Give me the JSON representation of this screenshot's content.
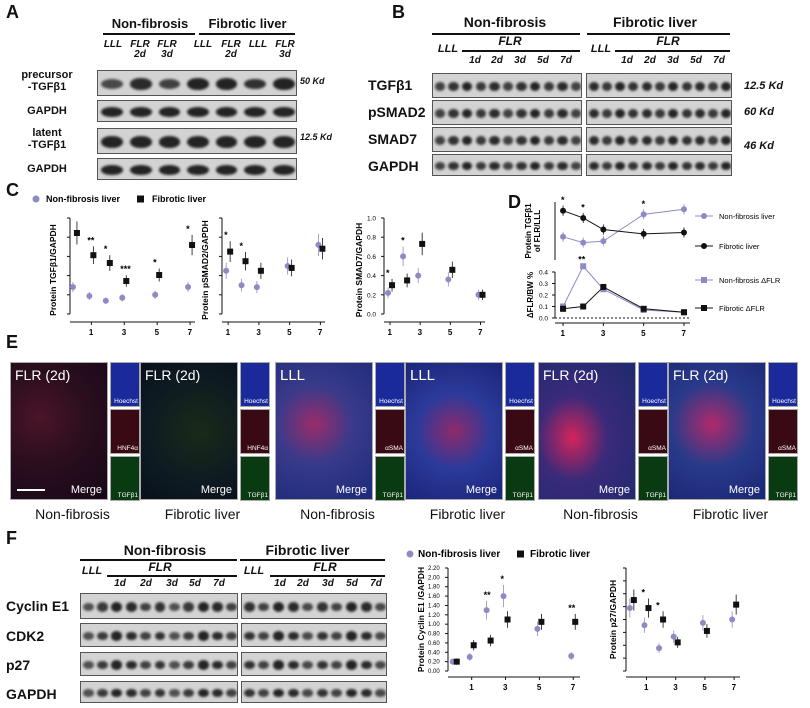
{
  "panels": {
    "A": "A",
    "B": "B",
    "C": "C",
    "D": "D",
    "E": "E",
    "F": "F"
  },
  "colors": {
    "non_fibrosis": "#8d8bc4",
    "fibrotic": "#111111"
  },
  "panelA": {
    "groups": [
      "Non-fibrosis",
      "Fibrotic liver"
    ],
    "lanes": [
      "LLL",
      "FLR\n2d",
      "FLR\n3d",
      "LLL",
      "FLR\n2d",
      "LLL",
      "FLR\n3d"
    ],
    "rows": [
      "precursor\n-TGFβ1",
      "GAPDH",
      "latent\n-TGFβ1",
      "GAPDH"
    ],
    "markers": [
      "50 Kd",
      "12.5 Kd"
    ]
  },
  "panelB": {
    "groups": [
      "Non-fibrosis",
      "Fibrotic liver"
    ],
    "flr": "FLR",
    "lll": "LLL",
    "days": [
      "1d",
      "2d",
      "3d",
      "5d",
      "7d"
    ],
    "rows": [
      "TGFβ1",
      "pSMAD2",
      "SMAD7",
      "GAPDH"
    ],
    "markers": [
      "12.5 Kd",
      "60 Kd",
      "46 Kd"
    ]
  },
  "panelC": {
    "legend": [
      "Non-fibrosis liver",
      "Fibrotic liver"
    ],
    "charts": [
      {
        "ylabel": "Protein TGFβ1/GAPDH",
        "xticks": [
          "1",
          "3",
          "5",
          "7"
        ],
        "stars": [
          "**",
          "*",
          "***",
          "*",
          "*"
        ]
      },
      {
        "ylabel": "Protein pSMAD2/GAPDH",
        "xticks": [
          "1",
          "3",
          "5",
          "7"
        ],
        "stars": [
          "*",
          "*"
        ]
      },
      {
        "ylabel": "Protein SMAD7/GAPDH",
        "xticks": [
          "1",
          "3",
          "5",
          "7"
        ],
        "yticks": [
          "0.0",
          "0.2",
          "0.4",
          "0.6",
          "0.8",
          "1.0"
        ],
        "stars": [
          "*",
          "*"
        ]
      }
    ]
  },
  "panelD": {
    "ylabel_top": "Protein TGFβ1\nof FLR/LLL",
    "ylabel_bottom": "ΔFLR/BW %",
    "yticks_bottom": [
      "0.4",
      "0.3",
      "0.2",
      "0.1",
      "0.0"
    ],
    "xticks": [
      "1",
      "3",
      "5",
      "7"
    ],
    "legend": [
      "Non-fibrosis liver",
      "Fibrotic liver",
      "Non-fibrosis ΔFLR",
      "Fibrotic ΔFLR"
    ],
    "stars_top": [
      "*",
      "*",
      "*"
    ],
    "stars_bottom": [
      "**"
    ]
  },
  "panelE": {
    "groups": [
      {
        "tiles": [
          "FLR (2d)",
          "FLR (2d)"
        ],
        "captions": [
          "Non-fibrosis",
          "Fibrotic liver"
        ],
        "subs": [
          "Hoechst",
          "HNF4α",
          "TGFβ1"
        ],
        "merge": "Merge"
      },
      {
        "tiles": [
          "LLL",
          "LLL"
        ],
        "captions": [
          "Non-fibrosis",
          "Fibrotic liver"
        ],
        "subs": [
          "Hoechst",
          "αSMA",
          "TGFβ1"
        ],
        "merge": "Merge"
      },
      {
        "tiles": [
          "FLR (2d)",
          "FLR (2d)"
        ],
        "captions": [
          "Non-fibrosis",
          "Fibrotic liver"
        ],
        "subs": [
          "Hoechst",
          "αSMA",
          "TGFβ1"
        ],
        "merge": "Merge"
      }
    ]
  },
  "panelF": {
    "groups": [
      "Non-fibrosis",
      "Fibrotic liver"
    ],
    "lll": "LLL",
    "flr": "FLR",
    "days": [
      "1d",
      "2d",
      "3d",
      "5d",
      "7d"
    ],
    "rows": [
      "Cyclin E1",
      "CDK2",
      "p27",
      "GAPDH"
    ],
    "legend": [
      "Non-fibrosis liver",
      "Fibrotic liver"
    ],
    "chart1": {
      "ylabel": "Protein Cyclin E1 /GAPDH",
      "yticks": [
        "0.00",
        "0.20",
        "0.40",
        "0.60",
        "0.80",
        "1.00",
        "1.20",
        "1.40",
        "1.60",
        "1.80",
        "2.00",
        "2.20"
      ],
      "xticks": [
        "1",
        "3",
        "5",
        "7"
      ],
      "stars": [
        "**",
        "*",
        "**"
      ]
    },
    "chart2": {
      "ylabel": "Protein p27/GAPDH",
      "xticks": [
        "1",
        "3",
        "5",
        "7"
      ],
      "stars": [
        "*",
        "*"
      ]
    }
  },
  "chart_data": [
    {
      "type": "scatter",
      "ylabel": "Protein TGFβ1/GAPDH",
      "x": [
        0,
        1,
        2,
        3,
        5,
        7
      ],
      "series": [
        {
          "name": "Non-fibrosis liver",
          "values": [
            0.45,
            0.3,
            0.22,
            0.27,
            0.32,
            0.45
          ]
        },
        {
          "name": "Fibrotic liver",
          "values": [
            1.35,
            0.98,
            0.85,
            0.55,
            0.65,
            1.15
          ]
        }
      ],
      "ylim": [
        0,
        1.6
      ]
    },
    {
      "type": "scatter",
      "ylabel": "Protein pSMAD2/GAPDH",
      "x": [
        1,
        2,
        3,
        5,
        7
      ],
      "series": [
        {
          "name": "Non-fibrosis liver",
          "values": [
            0.45,
            0.3,
            0.28,
            0.5,
            0.72
          ]
        },
        {
          "name": "Fibrotic liver",
          "values": [
            0.65,
            0.55,
            0.45,
            0.48,
            0.68
          ]
        }
      ],
      "ylim": [
        0,
        1.0
      ]
    },
    {
      "type": "scatter",
      "ylabel": "Protein SMAD7/GAPDH",
      "x": [
        1,
        2,
        3,
        5,
        7
      ],
      "series": [
        {
          "name": "Non-fibrosis liver",
          "values": [
            0.22,
            0.6,
            0.4,
            0.36,
            0.2
          ]
        },
        {
          "name": "Fibrotic liver",
          "values": [
            0.3,
            0.35,
            0.73,
            0.46,
            0.2
          ]
        }
      ],
      "ylim": [
        0,
        1.0
      ]
    },
    {
      "type": "line",
      "ylabel": "Protein TGFβ1 of FLR/LLL",
      "x": [
        1,
        2,
        3,
        5,
        7
      ],
      "series": [
        {
          "name": "Non-fibrosis liver",
          "values": [
            3.2,
            2.4,
            2.6,
            6.3,
            7.0
          ]
        },
        {
          "name": "Fibrotic liver",
          "values": [
            6.8,
            5.8,
            4.2,
            3.6,
            3.8
          ]
        }
      ],
      "ylim": [
        0,
        8
      ]
    },
    {
      "type": "line",
      "ylabel": "ΔFLR/BW %",
      "x": [
        1,
        2,
        3,
        5,
        7
      ],
      "series": [
        {
          "name": "Non-fibrosis ΔFLR",
          "values": [
            0.1,
            0.45,
            0.25,
            0.07,
            0.05
          ]
        },
        {
          "name": "Fibrotic ΔFLR",
          "values": [
            0.08,
            0.1,
            0.27,
            0.08,
            0.05
          ]
        }
      ],
      "ylim": [
        0,
        0.4
      ]
    },
    {
      "type": "scatter",
      "ylabel": "Protein Cyclin E1 /GAPDH",
      "x": [
        0,
        1,
        2,
        3,
        5,
        7
      ],
      "series": [
        {
          "name": "Non-fibrosis liver",
          "values": [
            0.2,
            0.3,
            1.3,
            1.6,
            0.9,
            0.32
          ]
        },
        {
          "name": "Fibrotic liver",
          "values": [
            0.2,
            0.55,
            0.65,
            1.1,
            1.05,
            1.05
          ]
        }
      ],
      "ylim": [
        0,
        2.2
      ]
    },
    {
      "type": "scatter",
      "ylabel": "Protein p27/GAPDH",
      "x": [
        0,
        1,
        2,
        3,
        5,
        7
      ],
      "series": [
        {
          "name": "Non-fibrosis liver",
          "values": [
            0.55,
            0.4,
            0.2,
            0.3,
            0.42,
            0.45
          ]
        },
        {
          "name": "Fibrotic liver",
          "values": [
            0.62,
            0.55,
            0.45,
            0.25,
            0.35,
            0.58
          ]
        }
      ],
      "ylim": [
        0,
        0.9
      ]
    }
  ]
}
